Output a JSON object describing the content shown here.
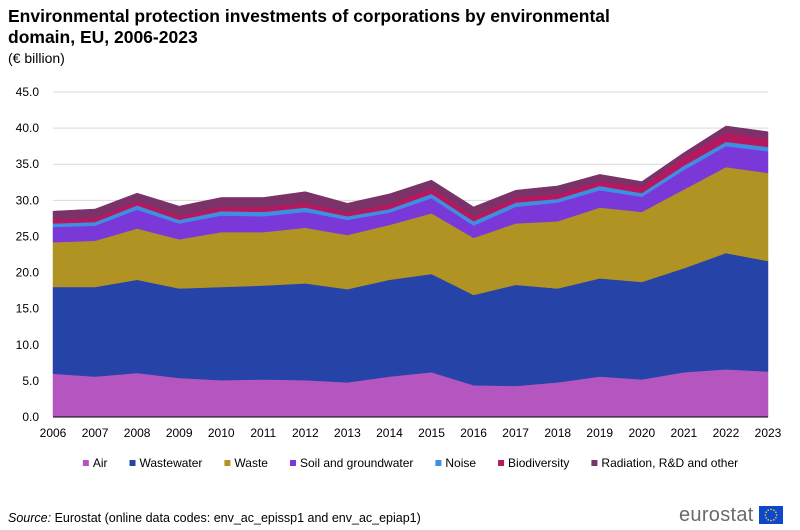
{
  "chart_data": {
    "type": "area",
    "stacked": true,
    "title": "Environmental protection investments of corporations by environmental domain, EU, 2006-2023",
    "subtitle": "(€ billion)",
    "xlabel": "",
    "ylabel": "",
    "ylim": [
      0,
      45
    ],
    "yticks": [
      0,
      5,
      10,
      15,
      20,
      25,
      30,
      35,
      40,
      45
    ],
    "ytick_labels": [
      "0.0",
      "5.0",
      "10.0",
      "15.0",
      "20.0",
      "25.0",
      "30.0",
      "35.0",
      "40.0",
      "45.0"
    ],
    "grid": true,
    "legend_position": "bottom",
    "x": [
      "2006",
      "2007",
      "2008",
      "2009",
      "2010",
      "2011",
      "2012",
      "2013",
      "2014",
      "2015",
      "2016",
      "2017",
      "2018",
      "2019",
      "2020",
      "2021",
      "2022",
      "2023"
    ],
    "series": [
      {
        "name": "Air",
        "color": "#b455c0",
        "values": [
          6.0,
          5.6,
          6.1,
          5.4,
          5.1,
          5.2,
          5.1,
          4.8,
          5.6,
          6.2,
          4.4,
          4.3,
          4.8,
          5.6,
          5.2,
          6.2,
          6.6,
          6.3
        ]
      },
      {
        "name": "Wastewater",
        "color": "#2643a8",
        "values": [
          12.0,
          12.4,
          12.9,
          12.4,
          12.9,
          13.0,
          13.4,
          12.9,
          13.4,
          13.6,
          12.5,
          14.0,
          13.0,
          13.6,
          13.5,
          14.4,
          16.1,
          15.3
        ]
      },
      {
        "name": "Waste",
        "color": "#b09322",
        "values": [
          6.2,
          6.4,
          7.1,
          6.8,
          7.6,
          7.4,
          7.7,
          7.5,
          7.6,
          8.4,
          7.9,
          8.5,
          9.3,
          9.8,
          9.7,
          10.9,
          11.9,
          12.2
        ]
      },
      {
        "name": "Soil and groundwater",
        "color": "#7b38d8",
        "values": [
          2.1,
          2.1,
          2.6,
          2.2,
          2.3,
          2.2,
          2.2,
          2.1,
          1.7,
          2.1,
          1.7,
          2.3,
          2.6,
          2.4,
          2.1,
          2.7,
          2.9,
          3.0
        ]
      },
      {
        "name": "Noise",
        "color": "#3d8fe0",
        "values": [
          0.5,
          0.5,
          0.6,
          0.5,
          0.6,
          0.6,
          0.6,
          0.5,
          0.5,
          0.6,
          0.6,
          0.6,
          0.5,
          0.6,
          0.5,
          0.6,
          0.6,
          0.6
        ]
      },
      {
        "name": "Biodiversity",
        "color": "#b5185e",
        "values": [
          0.6,
          0.6,
          0.6,
          0.6,
          0.6,
          0.7,
          0.7,
          0.6,
          0.7,
          0.8,
          0.7,
          0.7,
          0.7,
          0.7,
          0.9,
          1.2,
          1.3,
          1.1
        ]
      },
      {
        "name": "Radiation, R&D and other",
        "color": "#7a3268",
        "values": [
          1.1,
          1.2,
          1.1,
          1.3,
          1.3,
          1.3,
          1.5,
          1.2,
          1.4,
          1.1,
          1.3,
          1.0,
          1.1,
          0.9,
          0.7,
          0.6,
          0.9,
          1.0
        ]
      }
    ]
  },
  "source": {
    "label": "Source:",
    "text": " Eurostat (online data codes: env_ac_epissp1 and env_ac_epiap1)"
  },
  "logo": {
    "text": "eurostat",
    "icon": "eu-flag-icon",
    "flag_color": "#0e47cb",
    "star_color": "#ffd617"
  }
}
